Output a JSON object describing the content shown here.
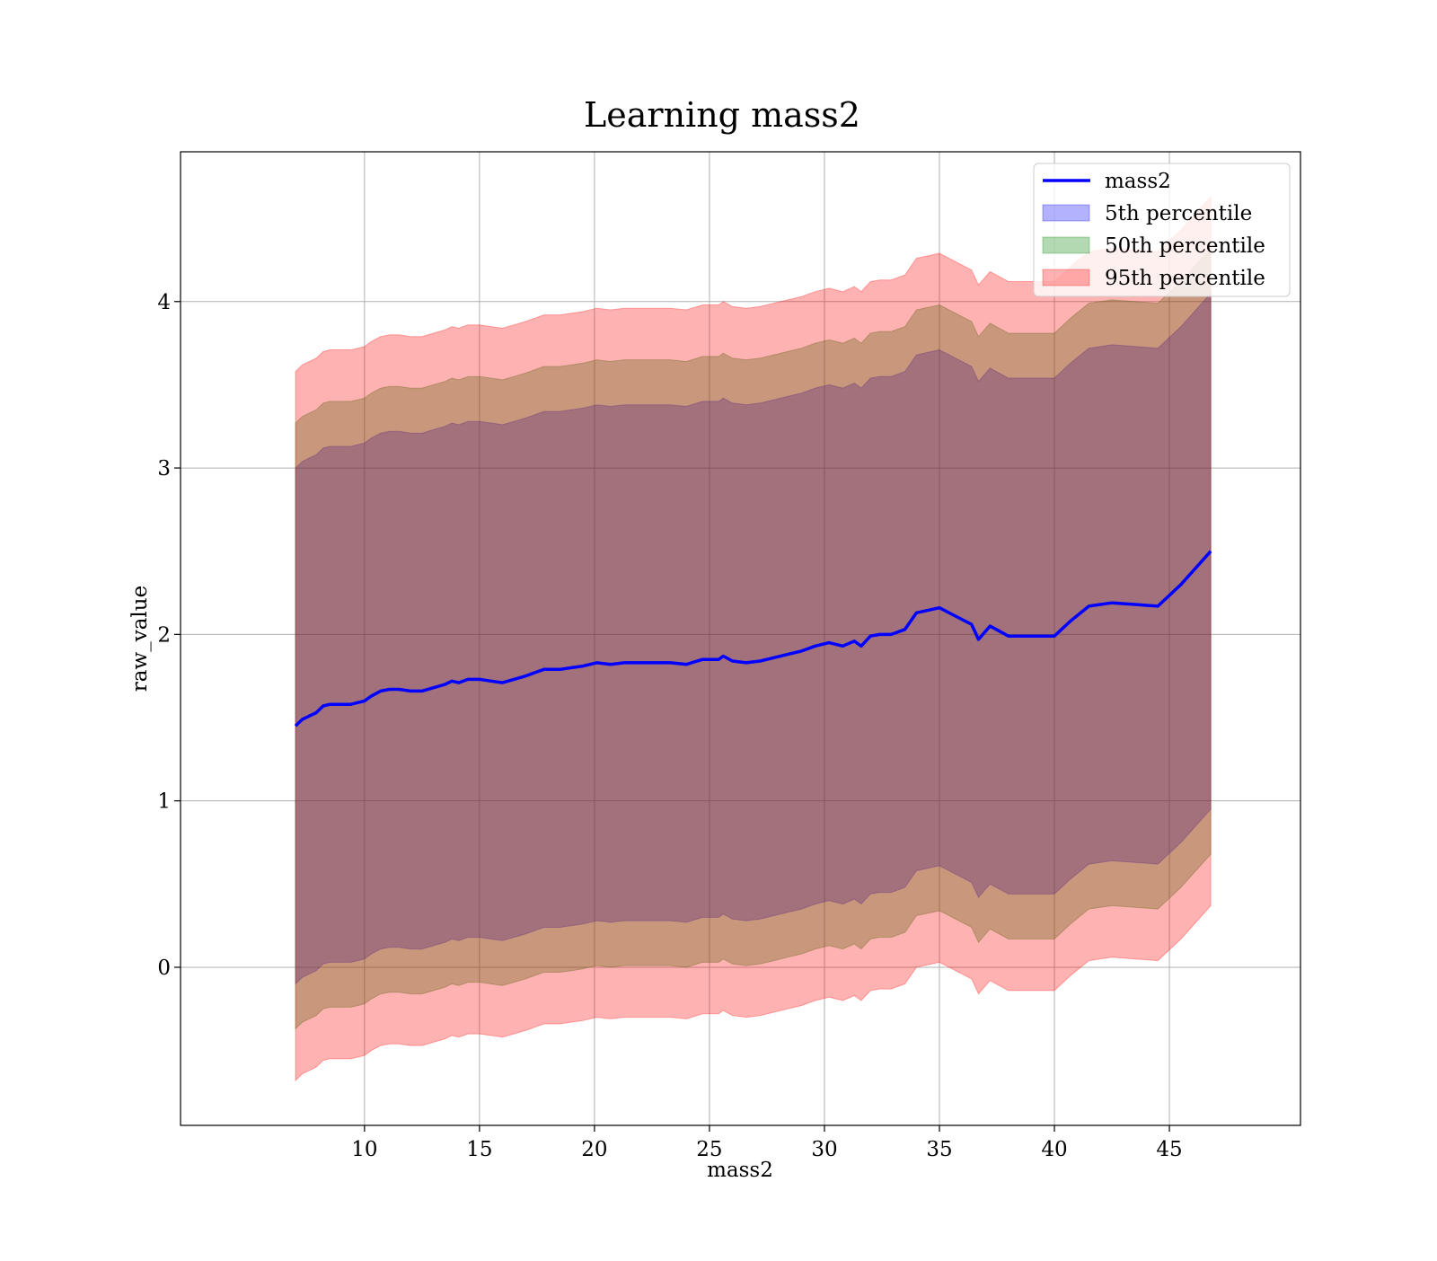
{
  "chart_data": {
    "type": "area",
    "title": "Learning mass2",
    "xlabel": "mass2",
    "ylabel": "raw_value",
    "xlim": [
      2.0,
      50.7
    ],
    "ylim": [
      -0.95,
      4.9
    ],
    "xticks": [
      10,
      15,
      20,
      25,
      30,
      35,
      40,
      45
    ],
    "yticks": [
      0,
      1,
      2,
      3,
      4
    ],
    "grid": true,
    "legend_position": "upper right",
    "series": [
      {
        "name": "mass2",
        "kind": "line",
        "color": "#0000ff"
      },
      {
        "name": "5th percentile",
        "kind": "band",
        "color": "#0000ff",
        "alpha": 0.3
      },
      {
        "name": "50th percentile",
        "kind": "band",
        "color": "#008000",
        "alpha": 0.3
      },
      {
        "name": "95th percentile",
        "kind": "band",
        "color": "#ff0000",
        "alpha": 0.3
      }
    ],
    "x": [
      7.0,
      7.3,
      7.6,
      7.9,
      8.2,
      8.5,
      8.8,
      9.1,
      9.4,
      9.7,
      10.0,
      10.3,
      10.7,
      11.1,
      11.5,
      12.0,
      12.5,
      13.0,
      13.5,
      13.8,
      14.1,
      14.5,
      15.0,
      15.5,
      16.0,
      16.5,
      17.0,
      17.4,
      17.8,
      18.5,
      19.0,
      19.5,
      20.1,
      20.7,
      21.3,
      22.0,
      22.7,
      23.3,
      24.0,
      24.7,
      25.4,
      25.6,
      26.0,
      26.6,
      27.2,
      27.8,
      28.4,
      29.0,
      29.6,
      30.2,
      30.8,
      31.3,
      31.6,
      32.0,
      32.4,
      32.9,
      33.5,
      34.0,
      35.0,
      35.7,
      36.4,
      36.7,
      37.2,
      38.0,
      39.0,
      40.0,
      40.7,
      41.5,
      42.5,
      43.5,
      44.5,
      45.5,
      46.8
    ],
    "mass2": [
      1.45,
      1.49,
      1.51,
      1.53,
      1.57,
      1.58,
      1.58,
      1.58,
      1.58,
      1.59,
      1.6,
      1.63,
      1.66,
      1.67,
      1.67,
      1.66,
      1.66,
      1.68,
      1.7,
      1.72,
      1.71,
      1.73,
      1.73,
      1.72,
      1.71,
      1.73,
      1.75,
      1.77,
      1.79,
      1.79,
      1.8,
      1.81,
      1.83,
      1.82,
      1.83,
      1.83,
      1.83,
      1.83,
      1.82,
      1.85,
      1.85,
      1.87,
      1.84,
      1.83,
      1.84,
      1.86,
      1.88,
      1.9,
      1.93,
      1.95,
      1.93,
      1.96,
      1.93,
      1.99,
      2.0,
      2.0,
      2.03,
      2.13,
      2.16,
      2.11,
      2.06,
      1.97,
      2.05,
      1.99,
      1.99,
      1.99,
      2.08,
      2.17,
      2.19,
      2.18,
      2.17,
      2.3,
      2.5
    ],
    "bands": {
      "5th percentile": {
        "lower": [
          -0.1,
          -0.06,
          -0.04,
          -0.02,
          0.02,
          0.03,
          0.03,
          0.03,
          0.03,
          0.04,
          0.05,
          0.08,
          0.11,
          0.12,
          0.12,
          0.11,
          0.11,
          0.13,
          0.15,
          0.17,
          0.16,
          0.18,
          0.18,
          0.17,
          0.16,
          0.18,
          0.2,
          0.22,
          0.24,
          0.24,
          0.25,
          0.26,
          0.28,
          0.27,
          0.28,
          0.28,
          0.28,
          0.28,
          0.27,
          0.3,
          0.3,
          0.32,
          0.29,
          0.28,
          0.29,
          0.31,
          0.33,
          0.35,
          0.38,
          0.4,
          0.38,
          0.41,
          0.38,
          0.44,
          0.45,
          0.45,
          0.48,
          0.58,
          0.61,
          0.56,
          0.51,
          0.42,
          0.5,
          0.44,
          0.44,
          0.44,
          0.53,
          0.62,
          0.64,
          0.63,
          0.62,
          0.75,
          0.95
        ],
        "upper": [
          3.0,
          3.04,
          3.06,
          3.08,
          3.12,
          3.13,
          3.13,
          3.13,
          3.13,
          3.14,
          3.15,
          3.18,
          3.21,
          3.22,
          3.22,
          3.21,
          3.21,
          3.23,
          3.25,
          3.27,
          3.26,
          3.28,
          3.28,
          3.27,
          3.26,
          3.28,
          3.3,
          3.32,
          3.34,
          3.34,
          3.35,
          3.36,
          3.38,
          3.37,
          3.38,
          3.38,
          3.38,
          3.38,
          3.37,
          3.4,
          3.4,
          3.42,
          3.39,
          3.38,
          3.39,
          3.41,
          3.43,
          3.45,
          3.48,
          3.5,
          3.48,
          3.51,
          3.48,
          3.54,
          3.55,
          3.55,
          3.58,
          3.68,
          3.71,
          3.66,
          3.61,
          3.52,
          3.6,
          3.54,
          3.54,
          3.54,
          3.63,
          3.72,
          3.74,
          3.73,
          3.72,
          3.85,
          4.05
        ]
      },
      "50th percentile": {
        "lower": [
          -0.37,
          -0.33,
          -0.31,
          -0.29,
          -0.25,
          -0.24,
          -0.24,
          -0.24,
          -0.24,
          -0.23,
          -0.22,
          -0.19,
          -0.16,
          -0.15,
          -0.15,
          -0.16,
          -0.16,
          -0.14,
          -0.12,
          -0.1,
          -0.11,
          -0.09,
          -0.09,
          -0.1,
          -0.11,
          -0.09,
          -0.07,
          -0.05,
          -0.03,
          -0.03,
          -0.02,
          -0.01,
          0.01,
          0.0,
          0.01,
          0.01,
          0.01,
          0.01,
          0.0,
          0.03,
          0.03,
          0.05,
          0.02,
          0.01,
          0.02,
          0.04,
          0.06,
          0.08,
          0.11,
          0.13,
          0.11,
          0.14,
          0.11,
          0.17,
          0.18,
          0.18,
          0.21,
          0.31,
          0.34,
          0.29,
          0.24,
          0.15,
          0.23,
          0.17,
          0.17,
          0.17,
          0.26,
          0.35,
          0.37,
          0.36,
          0.35,
          0.48,
          0.68
        ],
        "upper": [
          3.27,
          3.31,
          3.33,
          3.35,
          3.39,
          3.4,
          3.4,
          3.4,
          3.4,
          3.41,
          3.42,
          3.45,
          3.48,
          3.49,
          3.49,
          3.48,
          3.48,
          3.5,
          3.52,
          3.54,
          3.53,
          3.55,
          3.55,
          3.54,
          3.53,
          3.55,
          3.57,
          3.59,
          3.61,
          3.61,
          3.62,
          3.63,
          3.65,
          3.64,
          3.65,
          3.65,
          3.65,
          3.65,
          3.64,
          3.67,
          3.67,
          3.69,
          3.66,
          3.65,
          3.66,
          3.68,
          3.7,
          3.72,
          3.75,
          3.77,
          3.75,
          3.78,
          3.75,
          3.81,
          3.82,
          3.82,
          3.85,
          3.95,
          3.98,
          3.93,
          3.88,
          3.79,
          3.87,
          3.81,
          3.81,
          3.81,
          3.9,
          3.99,
          4.01,
          4.0,
          3.99,
          4.12,
          4.32
        ]
      },
      "95th percentile": {
        "lower": [
          -0.68,
          -0.64,
          -0.62,
          -0.6,
          -0.56,
          -0.55,
          -0.55,
          -0.55,
          -0.55,
          -0.54,
          -0.53,
          -0.5,
          -0.47,
          -0.46,
          -0.46,
          -0.47,
          -0.47,
          -0.45,
          -0.43,
          -0.41,
          -0.42,
          -0.4,
          -0.4,
          -0.41,
          -0.42,
          -0.4,
          -0.38,
          -0.36,
          -0.34,
          -0.34,
          -0.33,
          -0.32,
          -0.3,
          -0.31,
          -0.3,
          -0.3,
          -0.3,
          -0.3,
          -0.31,
          -0.28,
          -0.28,
          -0.26,
          -0.29,
          -0.3,
          -0.29,
          -0.27,
          -0.25,
          -0.23,
          -0.2,
          -0.18,
          -0.2,
          -0.17,
          -0.2,
          -0.14,
          -0.13,
          -0.13,
          -0.1,
          0.0,
          0.03,
          -0.02,
          -0.07,
          -0.16,
          -0.08,
          -0.14,
          -0.14,
          -0.14,
          -0.05,
          0.04,
          0.06,
          0.05,
          0.04,
          0.17,
          0.37
        ],
        "upper": [
          3.58,
          3.62,
          3.64,
          3.66,
          3.7,
          3.71,
          3.71,
          3.71,
          3.71,
          3.72,
          3.73,
          3.76,
          3.79,
          3.8,
          3.8,
          3.79,
          3.79,
          3.81,
          3.83,
          3.85,
          3.84,
          3.86,
          3.86,
          3.85,
          3.84,
          3.86,
          3.88,
          3.9,
          3.92,
          3.92,
          3.93,
          3.94,
          3.96,
          3.95,
          3.96,
          3.96,
          3.96,
          3.96,
          3.95,
          3.98,
          3.98,
          4.0,
          3.97,
          3.96,
          3.97,
          3.99,
          4.01,
          4.03,
          4.06,
          4.08,
          4.06,
          4.09,
          4.06,
          4.12,
          4.13,
          4.13,
          4.16,
          4.26,
          4.29,
          4.24,
          4.19,
          4.1,
          4.18,
          4.12,
          4.12,
          4.12,
          4.21,
          4.3,
          4.32,
          4.31,
          4.3,
          4.43,
          4.63
        ]
      }
    }
  }
}
